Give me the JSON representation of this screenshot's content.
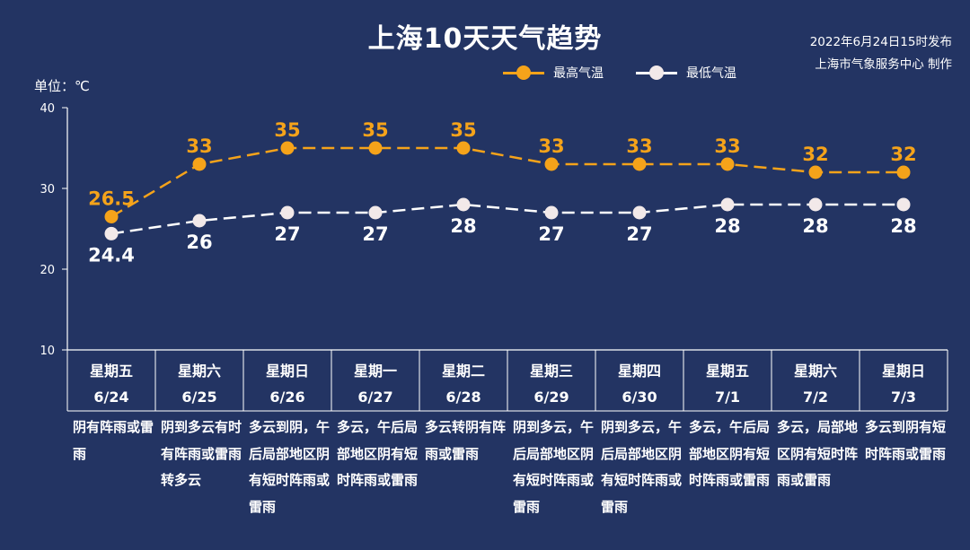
{
  "header": {
    "title": "上海10天天气趋势",
    "issued": "2022年6月24日15时发布",
    "producer": "上海市气象服务中心 制作",
    "unit": "单位：℃"
  },
  "legend": {
    "high_label": "最高气温",
    "low_label": "最低气温"
  },
  "colors": {
    "background": "#233463",
    "high": "#f5a31a",
    "low": "#ffffff"
  },
  "chart_data": {
    "type": "line",
    "title": "上海10天天气趋势",
    "ylabel": "单位：℃",
    "ylim": [
      10,
      40
    ],
    "yticks": [
      "10",
      "20",
      "30",
      "40"
    ],
    "categories": [
      "6/24",
      "6/25",
      "6/26",
      "6/27",
      "6/28",
      "6/29",
      "6/30",
      "7/1",
      "7/2",
      "7/3"
    ],
    "weekdays": [
      "星期五",
      "星期六",
      "星期日",
      "星期一",
      "星期二",
      "星期三",
      "星期四",
      "星期五",
      "星期六",
      "星期日"
    ],
    "series": [
      {
        "name": "最高气温",
        "values": [
          26.5,
          33,
          35,
          35,
          35,
          33,
          33,
          33,
          32,
          32
        ],
        "labels": [
          "26.5",
          "33",
          "35",
          "35",
          "35",
          "33",
          "33",
          "33",
          "32",
          "32"
        ]
      },
      {
        "name": "最低气温",
        "values": [
          24.4,
          26,
          27,
          27,
          28,
          27,
          27,
          28,
          28,
          28
        ],
        "labels": [
          "24.4",
          "26",
          "27",
          "27",
          "28",
          "27",
          "27",
          "28",
          "28",
          "28"
        ]
      }
    ],
    "line_style": "dashed",
    "grid": false
  },
  "descriptions": [
    "阴有阵雨或雷雨",
    "阴到多云有时有阵雨或雷雨转多云",
    "多云到阴，午后局部地区阴有短时阵雨或雷雨",
    "多云，午后局部地区阴有短时阵雨或雷雨",
    "多云转阴有阵雨或雷雨",
    "阴到多云，午后局部地区阴有短时阵雨或雷雨",
    "阴到多云，午后局部地区阴有短时阵雨或雷雨",
    "多云，午后局部地区阴有短时阵雨或雷雨",
    "多云，局部地区阴有短时阵雨或雷雨",
    "多云到阴有短时阵雨或雷雨"
  ]
}
